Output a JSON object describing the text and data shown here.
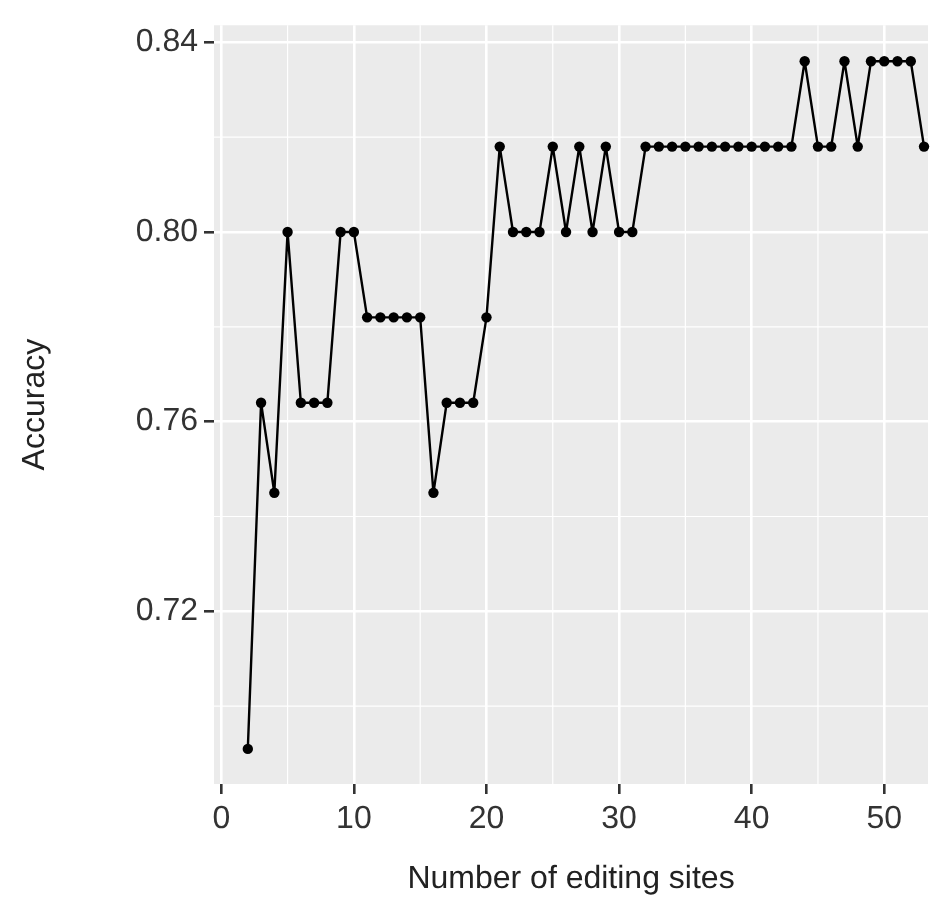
{
  "chart_data": {
    "type": "line",
    "xlabel": "Number of editing sites",
    "ylabel": "Accuracy",
    "x": [
      2,
      3,
      4,
      5,
      6,
      7,
      8,
      9,
      10,
      11,
      12,
      13,
      14,
      15,
      16,
      17,
      18,
      19,
      20,
      21,
      22,
      23,
      24,
      25,
      26,
      27,
      28,
      29,
      30,
      31,
      32,
      33,
      34,
      35,
      36,
      37,
      38,
      39,
      40,
      41,
      42,
      43,
      44,
      45,
      46,
      47,
      48,
      49,
      50,
      51,
      52,
      53
    ],
    "series": [
      {
        "color": "#000000",
        "values": [
          0.691,
          0.764,
          0.745,
          0.8,
          0.764,
          0.764,
          0.764,
          0.8,
          0.8,
          0.782,
          0.782,
          0.782,
          0.782,
          0.782,
          0.745,
          0.764,
          0.764,
          0.764,
          0.782,
          0.818,
          0.8,
          0.8,
          0.8,
          0.818,
          0.8,
          0.818,
          0.8,
          0.818,
          0.8,
          0.8,
          0.818,
          0.818,
          0.818,
          0.818,
          0.818,
          0.818,
          0.818,
          0.818,
          0.818,
          0.818,
          0.818,
          0.818,
          0.836,
          0.818,
          0.818,
          0.836,
          0.818,
          0.836,
          0.836,
          0.836,
          0.836,
          0.818
        ]
      }
    ],
    "xlim": [
      -0.55,
      53.3
    ],
    "xticks": [
      0,
      10,
      20,
      30,
      40,
      50
    ],
    "ylim": [
      0.6836,
      0.8436
    ],
    "yticks": [
      0.72,
      0.76,
      {
        "value": 0.8,
        "label": "0.80"
      },
      0.84
    ],
    "grid": true,
    "marker": "circle",
    "line_style": "solid",
    "legend": false
  }
}
